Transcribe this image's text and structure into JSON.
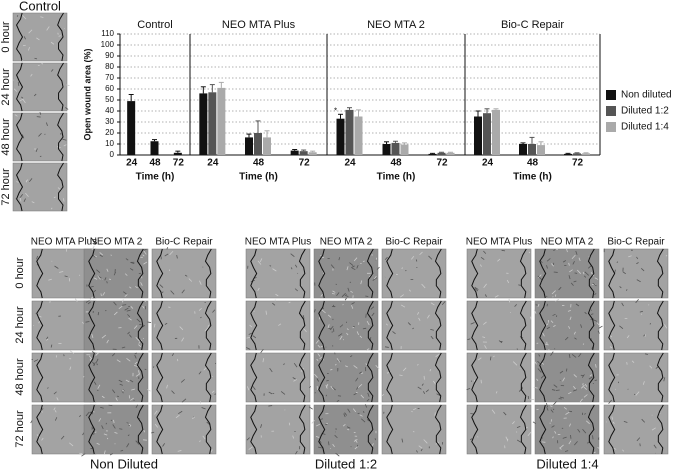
{
  "chart_data": {
    "type": "bar",
    "y_label": "Open wound area (%)",
    "x_label": "Time (h)",
    "ylim": [
      0,
      110
    ],
    "yticks": [
      0,
      10,
      20,
      30,
      40,
      50,
      60,
      70,
      80,
      90,
      100,
      110
    ],
    "grid": true,
    "legend": "right",
    "categories": [
      "24",
      "48",
      "72"
    ],
    "panels": [
      {
        "title": "Control",
        "series": [
          {
            "name": "Non diluted",
            "color": "#111111",
            "values": [
              49,
              12.5,
              2
            ],
            "errors": [
              6,
              1.5,
              1.5
            ]
          }
        ]
      },
      {
        "title": "NEO MTA Plus",
        "series": [
          {
            "name": "Non diluted",
            "color": "#111111",
            "values": [
              56,
              16,
              4
            ],
            "errors": [
              6,
              3,
              1
            ]
          },
          {
            "name": "Diluted 1:2",
            "color": "#555555",
            "values": [
              57,
              20,
              3.5
            ],
            "errors": [
              7,
              11,
              1
            ]
          },
          {
            "name": "Diluted 1:4",
            "color": "#aaaaaa",
            "values": [
              61,
              16,
              2.5
            ],
            "errors": [
              5,
              6,
              1
            ]
          }
        ]
      },
      {
        "title": "NEO MTA 2",
        "annotation": "*",
        "series": [
          {
            "name": "Non diluted",
            "color": "#111111",
            "values": [
              33,
              10,
              1
            ],
            "errors": [
              4,
              2,
              0.5
            ]
          },
          {
            "name": "Diluted 1:2",
            "color": "#555555",
            "values": [
              41,
              11,
              2
            ],
            "errors": [
              2,
              1.5,
              0.5
            ]
          },
          {
            "name": "Diluted 1:4",
            "color": "#aaaaaa",
            "values": [
              35,
              9.5,
              2
            ],
            "errors": [
              6,
              1.5,
              0.5
            ]
          }
        ]
      },
      {
        "title": "Bio-C Repair",
        "series": [
          {
            "name": "Non diluted",
            "color": "#111111",
            "values": [
              35,
              10,
              1
            ],
            "errors": [
              5,
              1,
              0.5
            ]
          },
          {
            "name": "Diluted 1:2",
            "color": "#555555",
            "values": [
              38,
              10,
              1.5
            ],
            "errors": [
              4,
              6,
              0.5
            ]
          },
          {
            "name": "Diluted 1:4",
            "color": "#aaaaaa",
            "values": [
              41,
              9,
              1.5
            ],
            "errors": [
              1,
              3,
              0.5
            ]
          }
        ]
      }
    ]
  },
  "figure": {
    "control_strip": {
      "title": "Control",
      "rows": [
        "0 hour",
        "24 hour",
        "48 hour",
        "72 hour"
      ]
    },
    "groups": [
      {
        "caption": "Non Diluted",
        "columns": [
          "NEO MTA Plus",
          "NEO MTA 2",
          "Bio-C Repair"
        ],
        "rows": [
          "0 hour",
          "24 hour",
          "48 hour",
          "72 hour"
        ]
      },
      {
        "caption": "Diluted 1:2",
        "columns": [
          "NEO MTA Plus",
          "NEO MTA 2",
          "Bio-C Repair"
        ]
      },
      {
        "caption": "Diluted 1:4",
        "columns": [
          "NEO MTA Plus",
          "NEO MTA 2",
          "Bio-C Repair"
        ]
      }
    ]
  }
}
